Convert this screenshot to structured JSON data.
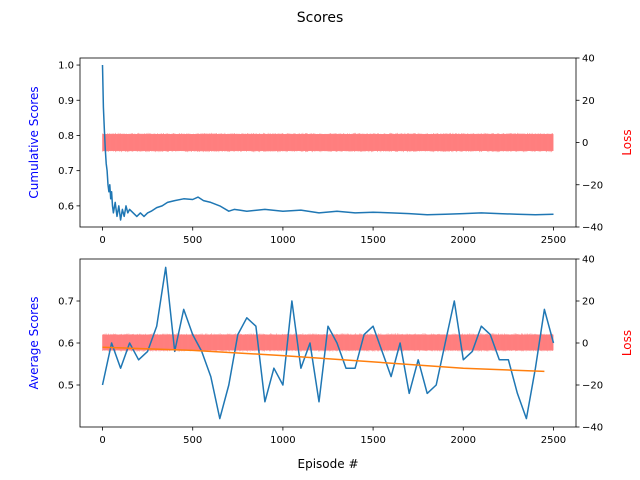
{
  "figure_title": "Scores",
  "colors": {
    "score_line": "#1f77b4",
    "loss_band": "#ff7f7f",
    "trend_line": "#ff7f0e",
    "left_label": "#0000ff",
    "right_label": "#ff0000"
  },
  "chart_data": [
    {
      "type": "line",
      "name": "cumulative",
      "ylabel": "Cumulative Scores",
      "y2label": "Loss",
      "xlim": [
        -125,
        2625
      ],
      "ylim": [
        0.54,
        1.02
      ],
      "y2lim": [
        -40,
        40
      ],
      "xticks": [
        0,
        500,
        1000,
        1500,
        2000,
        2500
      ],
      "yticks": [
        0.6,
        0.7,
        0.8,
        0.9,
        1.0
      ],
      "y2ticks": [
        -40,
        -20,
        0,
        20,
        40
      ],
      "series": [
        {
          "axis": "left",
          "x": [
            0,
            5,
            10,
            15,
            20,
            25,
            30,
            35,
            40,
            45,
            50,
            55,
            60,
            70,
            80,
            90,
            100,
            110,
            120,
            130,
            140,
            150,
            170,
            190,
            210,
            230,
            250,
            270,
            300,
            330,
            360,
            400,
            450,
            500,
            530,
            560,
            600,
            650,
            700,
            730,
            760,
            800,
            900,
            1000,
            1100,
            1200,
            1300,
            1400,
            1500,
            1600,
            1700,
            1800,
            1900,
            2000,
            2100,
            2200,
            2300,
            2400,
            2500
          ],
          "y": [
            1.0,
            0.88,
            0.82,
            0.76,
            0.72,
            0.7,
            0.66,
            0.64,
            0.66,
            0.62,
            0.64,
            0.6,
            0.58,
            0.61,
            0.57,
            0.6,
            0.56,
            0.59,
            0.57,
            0.6,
            0.58,
            0.59,
            0.58,
            0.57,
            0.58,
            0.57,
            0.58,
            0.585,
            0.595,
            0.6,
            0.61,
            0.615,
            0.62,
            0.618,
            0.625,
            0.615,
            0.61,
            0.6,
            0.585,
            0.59,
            0.588,
            0.585,
            0.59,
            0.585,
            0.588,
            0.58,
            0.585,
            0.58,
            0.582,
            0.58,
            0.578,
            0.575,
            0.576,
            0.578,
            0.58,
            0.578,
            0.576,
            0.575,
            0.576
          ]
        },
        {
          "axis": "right",
          "kind": "noise_band",
          "x_range": [
            0,
            2500
          ],
          "y_range": [
            -4,
            4
          ]
        }
      ]
    },
    {
      "type": "line",
      "name": "average",
      "ylabel": "Average Scores",
      "y2label": "Loss",
      "xlabel": "Episode #",
      "xlim": [
        -125,
        2625
      ],
      "ylim": [
        0.4,
        0.8
      ],
      "y2lim": [
        -40,
        40
      ],
      "xticks": [
        0,
        500,
        1000,
        1500,
        2000,
        2500
      ],
      "yticks": [
        0.5,
        0.6,
        0.7
      ],
      "y2ticks": [
        -40,
        -20,
        0,
        20,
        40
      ],
      "series": [
        {
          "axis": "left",
          "x": [
            0,
            50,
            100,
            150,
            200,
            250,
            300,
            350,
            400,
            450,
            500,
            550,
            600,
            650,
            700,
            750,
            800,
            850,
            900,
            950,
            1000,
            1050,
            1100,
            1150,
            1200,
            1250,
            1300,
            1350,
            1400,
            1450,
            1500,
            1550,
            1600,
            1650,
            1700,
            1750,
            1800,
            1850,
            1900,
            1950,
            2000,
            2050,
            2100,
            2150,
            2200,
            2250,
            2300,
            2350,
            2400,
            2450,
            2500
          ],
          "y": [
            0.5,
            0.6,
            0.54,
            0.6,
            0.56,
            0.58,
            0.64,
            0.78,
            0.58,
            0.68,
            0.62,
            0.58,
            0.52,
            0.42,
            0.5,
            0.62,
            0.66,
            0.64,
            0.46,
            0.54,
            0.5,
            0.7,
            0.54,
            0.6,
            0.46,
            0.64,
            0.6,
            0.54,
            0.54,
            0.62,
            0.64,
            0.58,
            0.52,
            0.6,
            0.48,
            0.56,
            0.48,
            0.5,
            0.6,
            0.7,
            0.56,
            0.58,
            0.64,
            0.62,
            0.56,
            0.56,
            0.48,
            0.42,
            0.54,
            0.68,
            0.6
          ]
        },
        {
          "axis": "right",
          "kind": "noise_band",
          "x_range": [
            0,
            2500
          ],
          "y_range": [
            -3.5,
            4
          ]
        },
        {
          "axis": "right",
          "x": [
            0,
            500,
            1000,
            1500,
            2000,
            2450
          ],
          "y": [
            -2,
            -3.5,
            -6,
            -9,
            -12,
            -13.5
          ]
        }
      ]
    }
  ]
}
